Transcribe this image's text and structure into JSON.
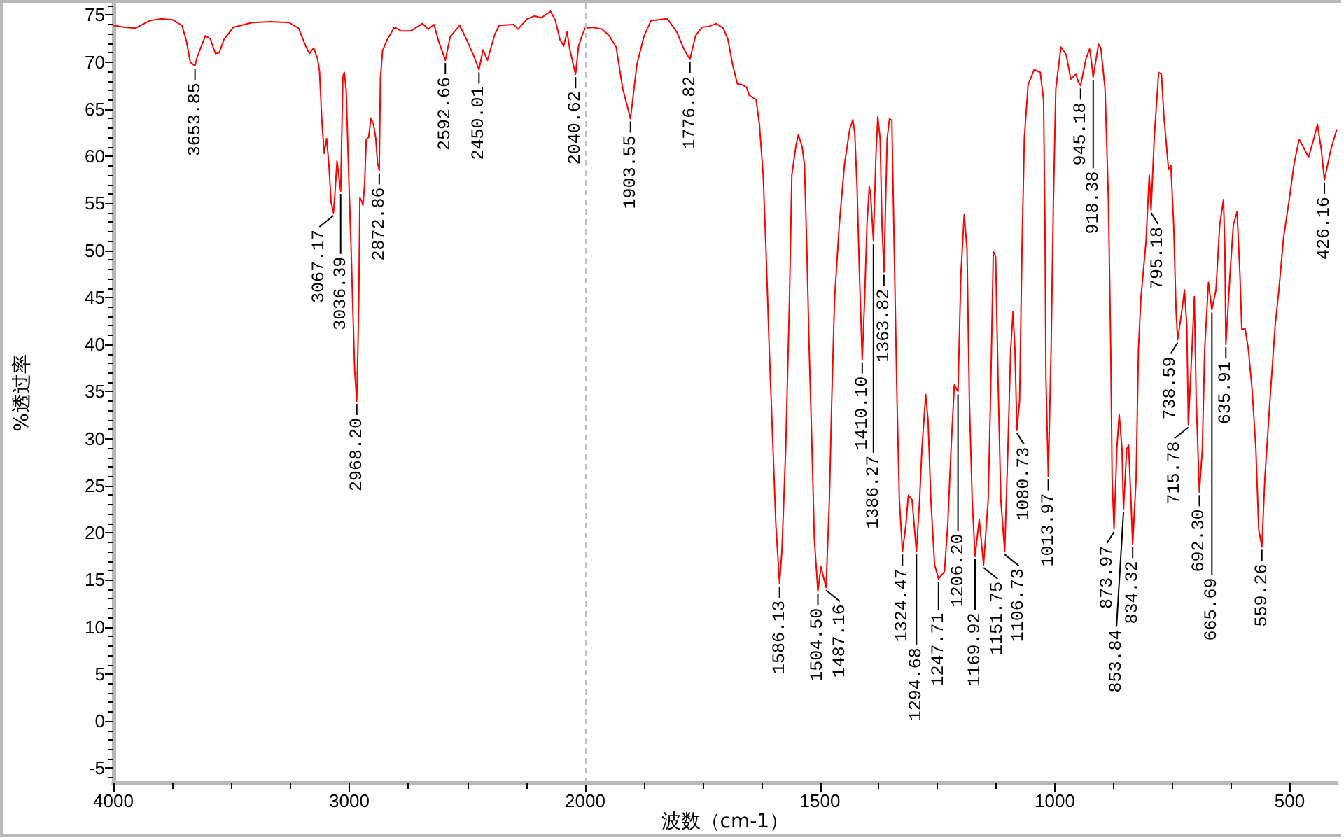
{
  "chart_data": [
    {
      "type": "line",
      "ylabel": "%透过率",
      "xlim": [
        4000,
        2000
      ],
      "xticks": [
        4000,
        {
          "value": 3750,
          "label": null
        },
        {
          "value": 3500,
          "label": null
        },
        {
          "value": 3250,
          "label": null
        },
        3000,
        {
          "value": 2750,
          "label": null
        },
        {
          "value": 2500,
          "label": null
        },
        {
          "value": 2250,
          "label": null
        },
        2000
      ],
      "ylim": [
        -6.6,
        76.3
      ],
      "yticks": [
        {
          "value": -6,
          "label": null
        },
        -5,
        {
          "value": -4,
          "label": null
        },
        {
          "value": -3,
          "label": null
        },
        {
          "value": -2,
          "label": null
        },
        {
          "value": -1,
          "label": null
        },
        0,
        {
          "value": 1,
          "label": null
        },
        {
          "value": 2,
          "label": null
        },
        {
          "value": 3,
          "label": null
        },
        {
          "value": 4,
          "label": null
        },
        5,
        {
          "value": 6,
          "label": null
        },
        {
          "value": 7,
          "label": null
        },
        {
          "value": 8,
          "label": null
        },
        {
          "value": 9,
          "label": null
        },
        10,
        {
          "value": 11,
          "label": null
        },
        {
          "value": 12,
          "label": null
        },
        {
          "value": 13,
          "label": null
        },
        {
          "value": 14,
          "label": null
        },
        15,
        {
          "value": 16,
          "label": null
        },
        {
          "value": 17,
          "label": null
        },
        {
          "value": 18,
          "label": null
        },
        {
          "value": 19,
          "label": null
        },
        20,
        {
          "value": 21,
          "label": null
        },
        {
          "value": 22,
          "label": null
        },
        {
          "value": 23,
          "label": null
        },
        {
          "value": 24,
          "label": null
        },
        25,
        {
          "value": 26,
          "label": null
        },
        {
          "value": 27,
          "label": null
        },
        {
          "value": 28,
          "label": null
        },
        {
          "value": 29,
          "label": null
        },
        30,
        {
          "value": 31,
          "label": null
        },
        {
          "value": 32,
          "label": null
        },
        {
          "value": 33,
          "label": null
        },
        {
          "value": 34,
          "label": null
        },
        35,
        {
          "value": 36,
          "label": null
        },
        {
          "value": 37,
          "label": null
        },
        {
          "value": 38,
          "label": null
        },
        {
          "value": 39,
          "label": null
        },
        40,
        {
          "value": 41,
          "label": null
        },
        {
          "value": 42,
          "label": null
        },
        {
          "value": 43,
          "label": null
        },
        {
          "value": 44,
          "label": null
        },
        45,
        {
          "value": 46,
          "label": null
        },
        {
          "value": 47,
          "label": null
        },
        {
          "value": 48,
          "label": null
        },
        {
          "value": 49,
          "label": null
        },
        50,
        {
          "value": 51,
          "label": null
        },
        {
          "value": 52,
          "label": null
        },
        {
          "value": 53,
          "label": null
        },
        {
          "value": 54,
          "label": null
        },
        55,
        {
          "value": 56,
          "label": null
        },
        {
          "value": 57,
          "label": null
        },
        {
          "value": 58,
          "label": null
        },
        {
          "value": 59,
          "label": null
        },
        60,
        {
          "value": 61,
          "label": null
        },
        {
          "value": 62,
          "label": null
        },
        {
          "value": 63,
          "label": null
        },
        {
          "value": 64,
          "label": null
        },
        65,
        {
          "value": 66,
          "label": null
        },
        {
          "value": 67,
          "label": null
        },
        {
          "value": 68,
          "label": null
        },
        {
          "value": 69,
          "label": null
        },
        70,
        {
          "value": 71,
          "label": null
        },
        {
          "value": 72,
          "label": null
        },
        {
          "value": 73,
          "label": null
        },
        {
          "value": 74,
          "label": null
        },
        75,
        {
          "value": 76,
          "label": null
        }
      ],
      "color": "#ff0000",
      "x": [
        4000,
        3950,
        3907,
        3847,
        3800,
        3749,
        3709,
        3690,
        3674,
        3653.85,
        3645,
        3610,
        3590,
        3567,
        3551,
        3531,
        3491,
        3412,
        3334,
        3254,
        3215,
        3185,
        3169,
        3151,
        3135,
        3126,
        3116,
        3106,
        3096,
        3086,
        3077,
        3067.17,
        3060,
        3052,
        3045,
        3036.39,
        3027,
        3021,
        3013,
        3001,
        2993,
        2985,
        2977,
        2968.2,
        2963,
        2959,
        2955,
        2948,
        2942,
        2935,
        2928,
        2918,
        2908,
        2898,
        2888,
        2880,
        2872.86,
        2868,
        2859,
        2839,
        2809,
        2779,
        2740,
        2690,
        2665,
        2641,
        2621,
        2592.66,
        2572,
        2532,
        2503,
        2473,
        2450.01,
        2433,
        2414,
        2384,
        2364,
        2304,
        2285,
        2245,
        2215,
        2186,
        2147,
        2127,
        2107,
        2091,
        2077,
        2064,
        2040.62,
        2028,
        2012,
        2000
      ],
      "values": [
        73.9,
        73.7,
        73.6,
        74.4,
        74.6,
        74.5,
        73.9,
        72.2,
        70.0,
        69.6,
        70.5,
        72.8,
        72.5,
        70.9,
        71.0,
        72.4,
        73.7,
        74.2,
        74.3,
        74.2,
        73.6,
        71.7,
        70.9,
        71.5,
        70.4,
        69.0,
        63.7,
        60.3,
        61.9,
        59.0,
        55.1,
        54.0,
        56.3,
        59.5,
        58.0,
        56.3,
        68.5,
        68.9,
        67.0,
        56.9,
        50.9,
        43.9,
        37.2,
        34.0,
        40.0,
        45.9,
        55.6,
        55.3,
        54.8,
        57.0,
        61.8,
        62.0,
        64.0,
        63.5,
        62.0,
        59.3,
        58.5,
        68.2,
        71.2,
        72.4,
        73.7,
        73.3,
        73.3,
        74.1,
        73.5,
        74.0,
        72.2,
        70.2,
        72.7,
        73.9,
        72.4,
        70.7,
        69.2,
        71.3,
        70.2,
        72.9,
        73.9,
        74.0,
        73.5,
        74.6,
        74.9,
        74.7,
        75.4,
        74.5,
        72.4,
        71.7,
        73.2,
        71.2,
        68.7,
        71.7,
        72.9,
        73.6
      ],
      "annotations": [
        {
          "text": "3653.85",
          "x": 3653.85,
          "y": 69.6
        },
        {
          "text": "3067.17",
          "x": 3067.17,
          "y": 54.0
        },
        {
          "text": "3036.39",
          "x": 3036.39,
          "y": 56.3
        },
        {
          "text": "2968.20",
          "x": 2968.2,
          "y": 34.0
        },
        {
          "text": "2872.86",
          "x": 2872.86,
          "y": 58.5
        },
        {
          "text": "2592.66",
          "x": 2592.66,
          "y": 70.2
        },
        {
          "text": "2450.01",
          "x": 2450.01,
          "y": 69.2
        },
        {
          "text": "2040.62",
          "x": 2040.62,
          "y": 68.7
        }
      ]
    },
    {
      "type": "line",
      "xlabel": "波数（cm-1）",
      "xlim": [
        2000,
        400
      ],
      "xticks": [
        {
          "value": 1875,
          "label": null
        },
        {
          "value": 1750,
          "label": null
        },
        {
          "value": 1625,
          "label": null
        },
        1500,
        {
          "value": 1375,
          "label": null
        },
        {
          "value": 1250,
          "label": null
        },
        {
          "value": 1125,
          "label": null
        },
        1000,
        {
          "value": 875,
          "label": null
        },
        {
          "value": 750,
          "label": null
        },
        {
          "value": 625,
          "label": null
        },
        500
      ],
      "ylim": [
        -6.6,
        76.3
      ],
      "tick_labels": "x",
      "color": "#ff0000",
      "ref_lines": [
        {
          "axis": "x",
          "value": 2000,
          "color": "#c0c0c0",
          "line_style": "dashed"
        }
      ],
      "x": [
        2000,
        1984,
        1964,
        1949,
        1934,
        1925,
        1920,
        1903.55,
        1900,
        1890,
        1875,
        1860,
        1825,
        1805,
        1790,
        1776.82,
        1765,
        1751,
        1736,
        1721,
        1706,
        1696,
        1686,
        1676,
        1666,
        1656,
        1651,
        1645,
        1636,
        1629,
        1621,
        1615,
        1608,
        1600,
        1594,
        1586.13,
        1581,
        1573,
        1565,
        1560,
        1551,
        1546,
        1538,
        1533,
        1528,
        1523,
        1517,
        1512,
        1504.5,
        1498,
        1487.16,
        1480,
        1475,
        1469,
        1459,
        1448,
        1437,
        1430,
        1426,
        1421,
        1416,
        1410.1,
        1405,
        1400,
        1395,
        1392,
        1386.27,
        1381,
        1377,
        1372,
        1368,
        1363.82,
        1357,
        1352,
        1347,
        1342,
        1336,
        1331,
        1324.47,
        1317,
        1312,
        1304,
        1294.68,
        1288,
        1283,
        1275,
        1270,
        1264,
        1256,
        1247.71,
        1235,
        1228,
        1221,
        1214,
        1206.2,
        1200,
        1193,
        1187,
        1182,
        1176,
        1169.92,
        1161,
        1151.75,
        1142,
        1137,
        1131,
        1126,
        1121,
        1115,
        1106.73,
        1100,
        1094,
        1089,
        1085,
        1080.73,
        1075,
        1070,
        1065,
        1057,
        1044,
        1031,
        1024,
        1021,
        1019,
        1013.97,
        1008,
        1003,
        998,
        987,
        976,
        966,
        960,
        955,
        950,
        945.18,
        934,
        926,
        922,
        918.38,
        907,
        902,
        893,
        886,
        881,
        878,
        873.97,
        868,
        863,
        857,
        853.84,
        847,
        843,
        838,
        834.32,
        827,
        822,
        817,
        806,
        799,
        795.18,
        788,
        779,
        773,
        768,
        758,
        753,
        747,
        742,
        738.59,
        729,
        724,
        719,
        715.78,
        708,
        703,
        699,
        692.3,
        686,
        681,
        673,
        665.69,
        657,
        649,
        641,
        638,
        635.91,
        627,
        620,
        612,
        606,
        602,
        595,
        588,
        580,
        572,
        566,
        559.26,
        553,
        542,
        531,
        523,
        513,
        501,
        491,
        480,
        471,
        460,
        449,
        441,
        433,
        426.16,
        412,
        400
      ],
      "values": [
        73.6,
        73.7,
        73.5,
        72.8,
        71.6,
        68.7,
        67.2,
        64.0,
        65.5,
        69.7,
        72.7,
        74.4,
        74.6,
        73.2,
        71.4,
        70.3,
        72.8,
        73.7,
        73.8,
        74.1,
        73.6,
        72.4,
        69.7,
        67.7,
        67.6,
        67.3,
        66.5,
        66.3,
        66.0,
        63.4,
        58.0,
        50.1,
        39.5,
        28.9,
        20.9,
        14.6,
        18.2,
        28.9,
        44.8,
        58.0,
        61.2,
        62.3,
        61.0,
        59.1,
        50.1,
        39.5,
        28.9,
        19.3,
        13.8,
        16.4,
        14.2,
        23.5,
        34.1,
        44.8,
        52.7,
        59.1,
        62.8,
        63.9,
        62.5,
        56.5,
        47.5,
        38.4,
        44.8,
        52.7,
        56.8,
        55.8,
        51.0,
        60.0,
        64.2,
        61.9,
        52.7,
        47.7,
        61.9,
        64.0,
        63.8,
        50.1,
        34.1,
        23.5,
        18.0,
        20.9,
        24.0,
        23.5,
        18.0,
        23.5,
        28.9,
        34.7,
        32.0,
        23.5,
        16.6,
        15.1,
        15.9,
        20.9,
        28.9,
        35.7,
        35.0,
        47.5,
        53.8,
        50.1,
        34.1,
        23.5,
        17.5,
        21.4,
        16.6,
        23.5,
        34.1,
        49.9,
        49.3,
        36.5,
        23.5,
        18.0,
        28.9,
        39.5,
        43.5,
        39.5,
        30.9,
        34.1,
        50.1,
        61.9,
        67.6,
        69.2,
        68.9,
        66.0,
        52.7,
        36.5,
        26.0,
        39.5,
        55.4,
        67.1,
        71.6,
        70.8,
        68.2,
        68.5,
        68.7,
        67.9,
        67.5,
        70.3,
        71.4,
        70.0,
        68.4,
        71.9,
        71.5,
        67.1,
        55.4,
        39.5,
        25.7,
        20.4,
        28.9,
        32.6,
        28.9,
        22.5,
        28.9,
        29.3,
        23.5,
        18.8,
        25.7,
        39.5,
        44.8,
        50.9,
        58.0,
        54.3,
        62.3,
        68.9,
        68.7,
        64.4,
        58.6,
        59.0,
        52.7,
        43.7,
        40.5,
        43.8,
        45.8,
        42.0,
        31.5,
        39.5,
        45.1,
        34.1,
        24.3,
        28.9,
        39.5,
        46.6,
        43.7,
        45.8,
        52.7,
        55.4,
        50.1,
        40.0,
        47.5,
        52.7,
        54.1,
        47.5,
        41.6,
        41.7,
        39.5,
        35.2,
        28.9,
        20.4,
        18.5,
        25.7,
        34.1,
        42.0,
        45.8,
        51.4,
        55.4,
        59.1,
        61.8,
        61.0,
        59.9,
        61.8,
        63.4,
        60.8,
        57.5,
        60.8,
        62.8
      ],
      "annotations": [
        {
          "text": "1903.55",
          "x": 1903.55,
          "y": 64.0
        },
        {
          "text": "1776.82",
          "x": 1776.82,
          "y": 70.3
        },
        {
          "text": "1586.13",
          "x": 1586.13,
          "y": 14.6
        },
        {
          "text": "1504.50",
          "x": 1504.5,
          "y": 13.8
        },
        {
          "text": "1487.16",
          "x": 1487.16,
          "y": 14.2
        },
        {
          "text": "1410.10",
          "x": 1410.1,
          "y": 38.4
        },
        {
          "text": "1386.27",
          "x": 1386.27,
          "y": 51.0
        },
        {
          "text": "1363.82",
          "x": 1363.82,
          "y": 47.7
        },
        {
          "text": "1324.47",
          "x": 1324.47,
          "y": 18.0
        },
        {
          "text": "1294.68",
          "x": 1294.68,
          "y": 18.0
        },
        {
          "text": "1247.71",
          "x": 1247.71,
          "y": 15.1
        },
        {
          "text": "1206.20",
          "x": 1206.2,
          "y": 35.0
        },
        {
          "text": "1169.92",
          "x": 1169.92,
          "y": 17.5
        },
        {
          "text": "1151.75",
          "x": 1151.75,
          "y": 16.6
        },
        {
          "text": "1106.73",
          "x": 1106.73,
          "y": 18.0
        },
        {
          "text": "1080.73",
          "x": 1080.73,
          "y": 30.9
        },
        {
          "text": "1013.97",
          "x": 1013.97,
          "y": 26.0
        },
        {
          "text": "945.18",
          "x": 945.18,
          "y": 67.5
        },
        {
          "text": "918.38",
          "x": 918.38,
          "y": 68.4
        },
        {
          "text": "873.97",
          "x": 873.97,
          "y": 20.4
        },
        {
          "text": "853.84",
          "x": 853.84,
          "y": 22.5
        },
        {
          "text": "834.32",
          "x": 834.32,
          "y": 18.8
        },
        {
          "text": "795.18",
          "x": 795.18,
          "y": 54.3
        },
        {
          "text": "738.59",
          "x": 738.59,
          "y": 40.5
        },
        {
          "text": "715.78",
          "x": 715.78,
          "y": 31.5
        },
        {
          "text": "692.30",
          "x": 692.3,
          "y": 24.3
        },
        {
          "text": "665.69",
          "x": 665.69,
          "y": 43.7
        },
        {
          "text": "635.91",
          "x": 635.91,
          "y": 40.0
        },
        {
          "text": "559.26",
          "x": 559.26,
          "y": 18.5
        },
        {
          "text": "426.16",
          "x": 426.16,
          "y": 57.5
        }
      ]
    }
  ]
}
